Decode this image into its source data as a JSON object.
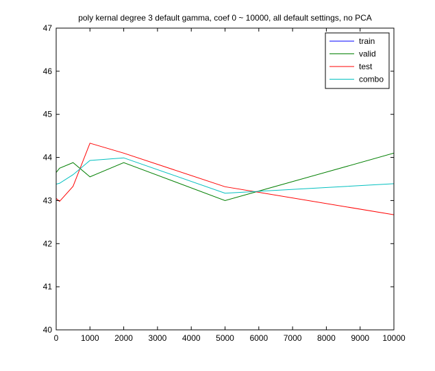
{
  "chart_data": {
    "type": "line",
    "title": "poly kernal degree 3 default gamma, coef 0 ~ 10000, all default settings, no PCA",
    "xlabel": "",
    "ylabel": "",
    "xlim": [
      0,
      10000
    ],
    "ylim": [
      40,
      47
    ],
    "xticks": [
      0,
      1000,
      2000,
      3000,
      4000,
      5000,
      6000,
      7000,
      8000,
      9000,
      10000
    ],
    "yticks": [
      40,
      41,
      42,
      43,
      44,
      45,
      46,
      47
    ],
    "grid": false,
    "legend_position": "top-right",
    "series": [
      {
        "name": "train",
        "color": "#0000ff",
        "x": [],
        "y": []
      },
      {
        "name": "valid",
        "color": "#007f00",
        "x": [
          0,
          100,
          500,
          1000,
          2000,
          5000,
          10000
        ],
        "y": [
          43.65,
          43.75,
          43.88,
          43.55,
          43.88,
          43.0,
          44.1
        ]
      },
      {
        "name": "test",
        "color": "#ff0000",
        "x": [
          0,
          100,
          500,
          1000,
          2000,
          5000,
          10000
        ],
        "y": [
          43.05,
          42.98,
          43.33,
          44.33,
          44.1,
          43.32,
          42.67
        ]
      },
      {
        "name": "combo",
        "color": "#00bfbf",
        "x": [
          0,
          100,
          500,
          1000,
          2000,
          5000,
          10000
        ],
        "y": [
          43.38,
          43.4,
          43.6,
          43.93,
          43.99,
          43.17,
          43.39
        ]
      }
    ]
  }
}
